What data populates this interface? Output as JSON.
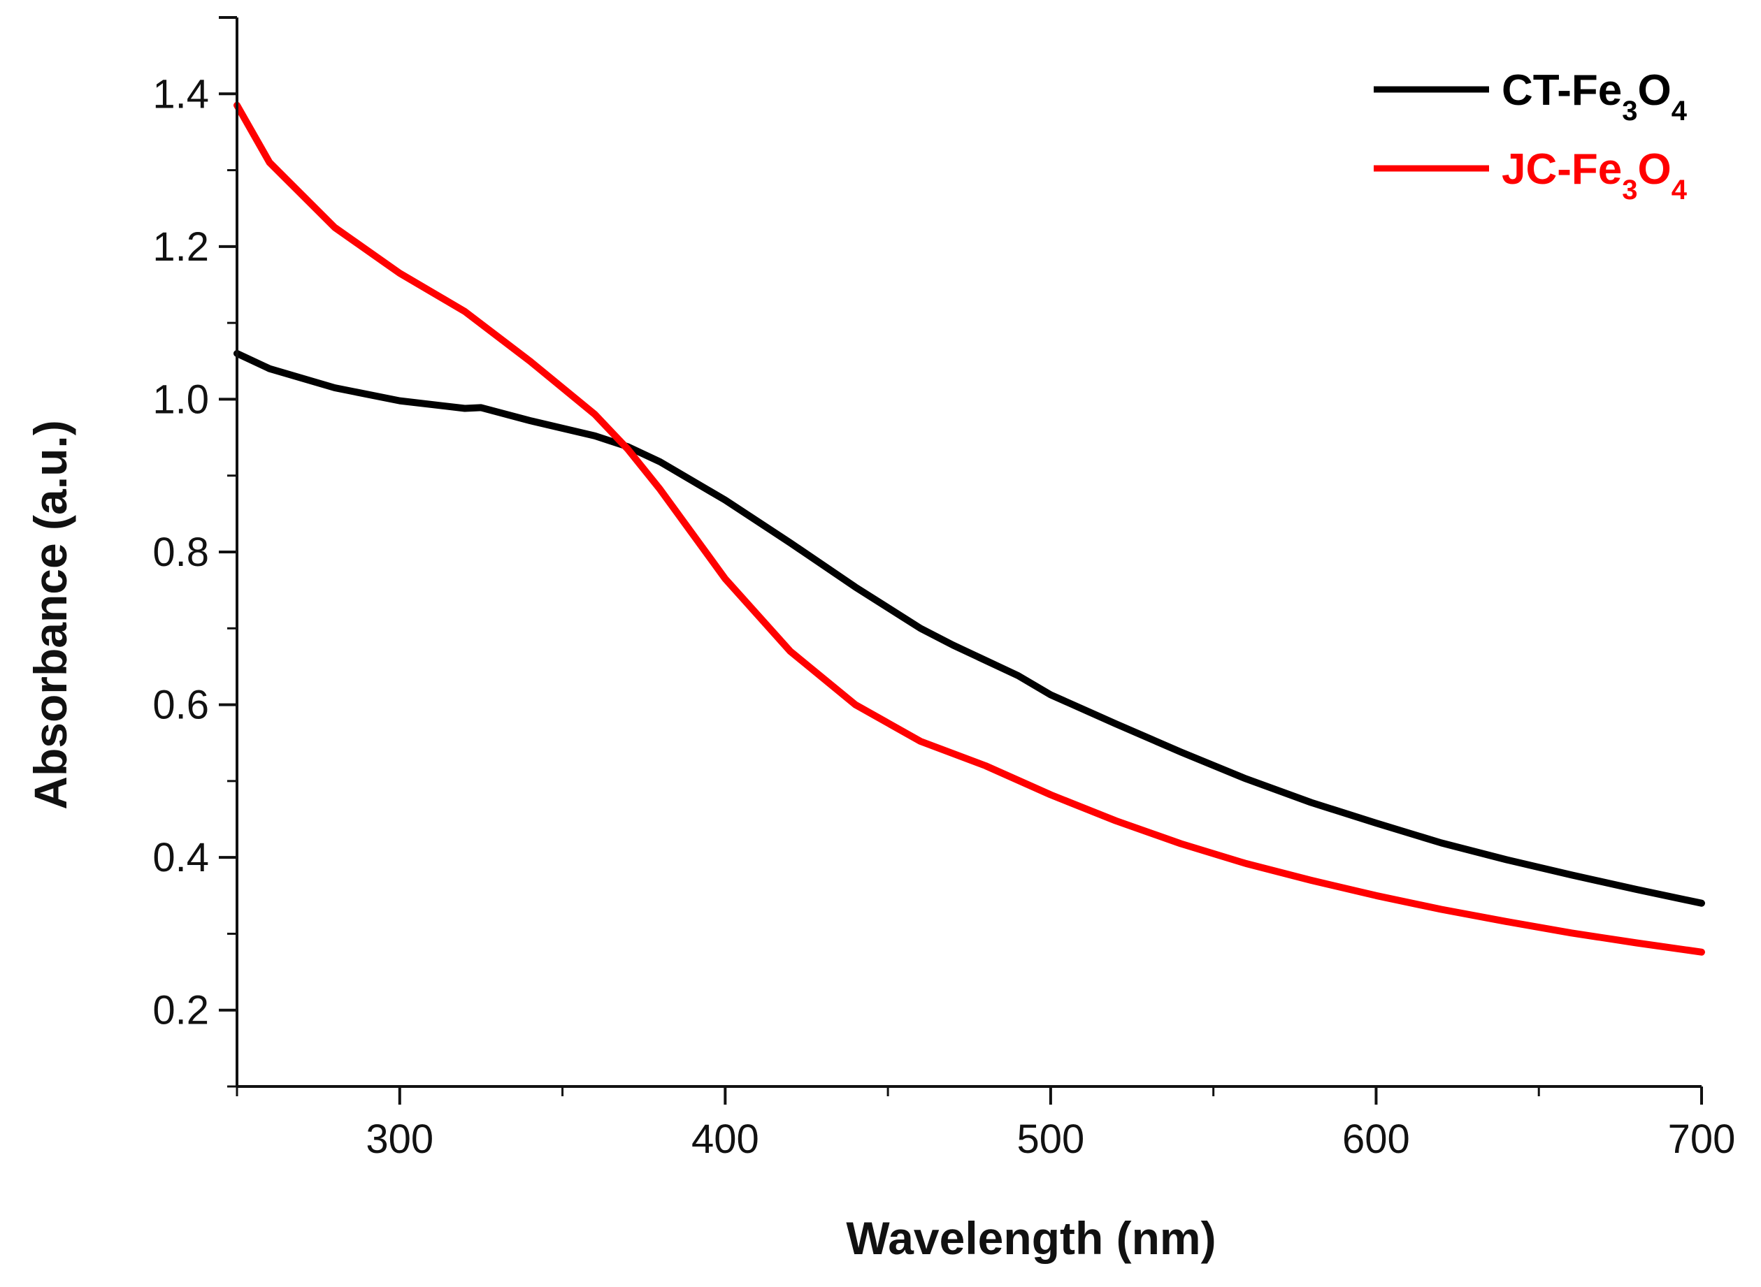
{
  "chart_data": {
    "type": "line",
    "title": "",
    "xlabel": "Wavelength (nm)",
    "ylabel": "Absorbance (a.u.)",
    "xlim": [
      250,
      700
    ],
    "ylim": [
      0.1,
      1.5
    ],
    "x_ticks": [
      300,
      400,
      500,
      600,
      700
    ],
    "x_tick_labels": [
      "300",
      "400",
      "500",
      "600",
      "700"
    ],
    "y_ticks": [
      0.2,
      0.4,
      0.6,
      0.8,
      1.0,
      1.2,
      1.4
    ],
    "y_tick_labels": [
      "0.2",
      "0.4",
      "0.6",
      "0.8",
      "1.0",
      "1.2",
      "1.4"
    ],
    "grid": false,
    "legend_position": "top-right",
    "series": [
      {
        "name": "CT-Fe3O4",
        "label_parts": [
          "CT-Fe",
          "3",
          "O",
          "4"
        ],
        "color": "#000000",
        "x": [
          250,
          260,
          280,
          300,
          320,
          325,
          340,
          360,
          370,
          380,
          400,
          420,
          440,
          460,
          470,
          480,
          490,
          500,
          520,
          540,
          560,
          580,
          600,
          620,
          640,
          660,
          680,
          700
        ],
        "y": [
          1.06,
          1.04,
          1.015,
          0.998,
          0.988,
          0.989,
          0.972,
          0.952,
          0.938,
          0.918,
          0.868,
          0.812,
          0.754,
          0.7,
          0.678,
          0.658,
          0.638,
          0.613,
          0.575,
          0.538,
          0.503,
          0.472,
          0.445,
          0.419,
          0.397,
          0.377,
          0.358,
          0.34
        ]
      },
      {
        "name": "JC-Fe3O4",
        "label_parts": [
          "JC-Fe",
          "3",
          "O",
          "4"
        ],
        "color": "#ff0000",
        "x": [
          250,
          260,
          280,
          300,
          320,
          340,
          360,
          370,
          380,
          400,
          420,
          440,
          460,
          480,
          500,
          520,
          540,
          560,
          580,
          600,
          620,
          640,
          660,
          680,
          700
        ],
        "y": [
          1.385,
          1.31,
          1.225,
          1.165,
          1.115,
          1.05,
          0.98,
          0.935,
          0.882,
          0.765,
          0.67,
          0.6,
          0.552,
          0.52,
          0.482,
          0.448,
          0.418,
          0.392,
          0.37,
          0.35,
          0.332,
          0.316,
          0.301,
          0.288,
          0.276
        ]
      }
    ]
  }
}
